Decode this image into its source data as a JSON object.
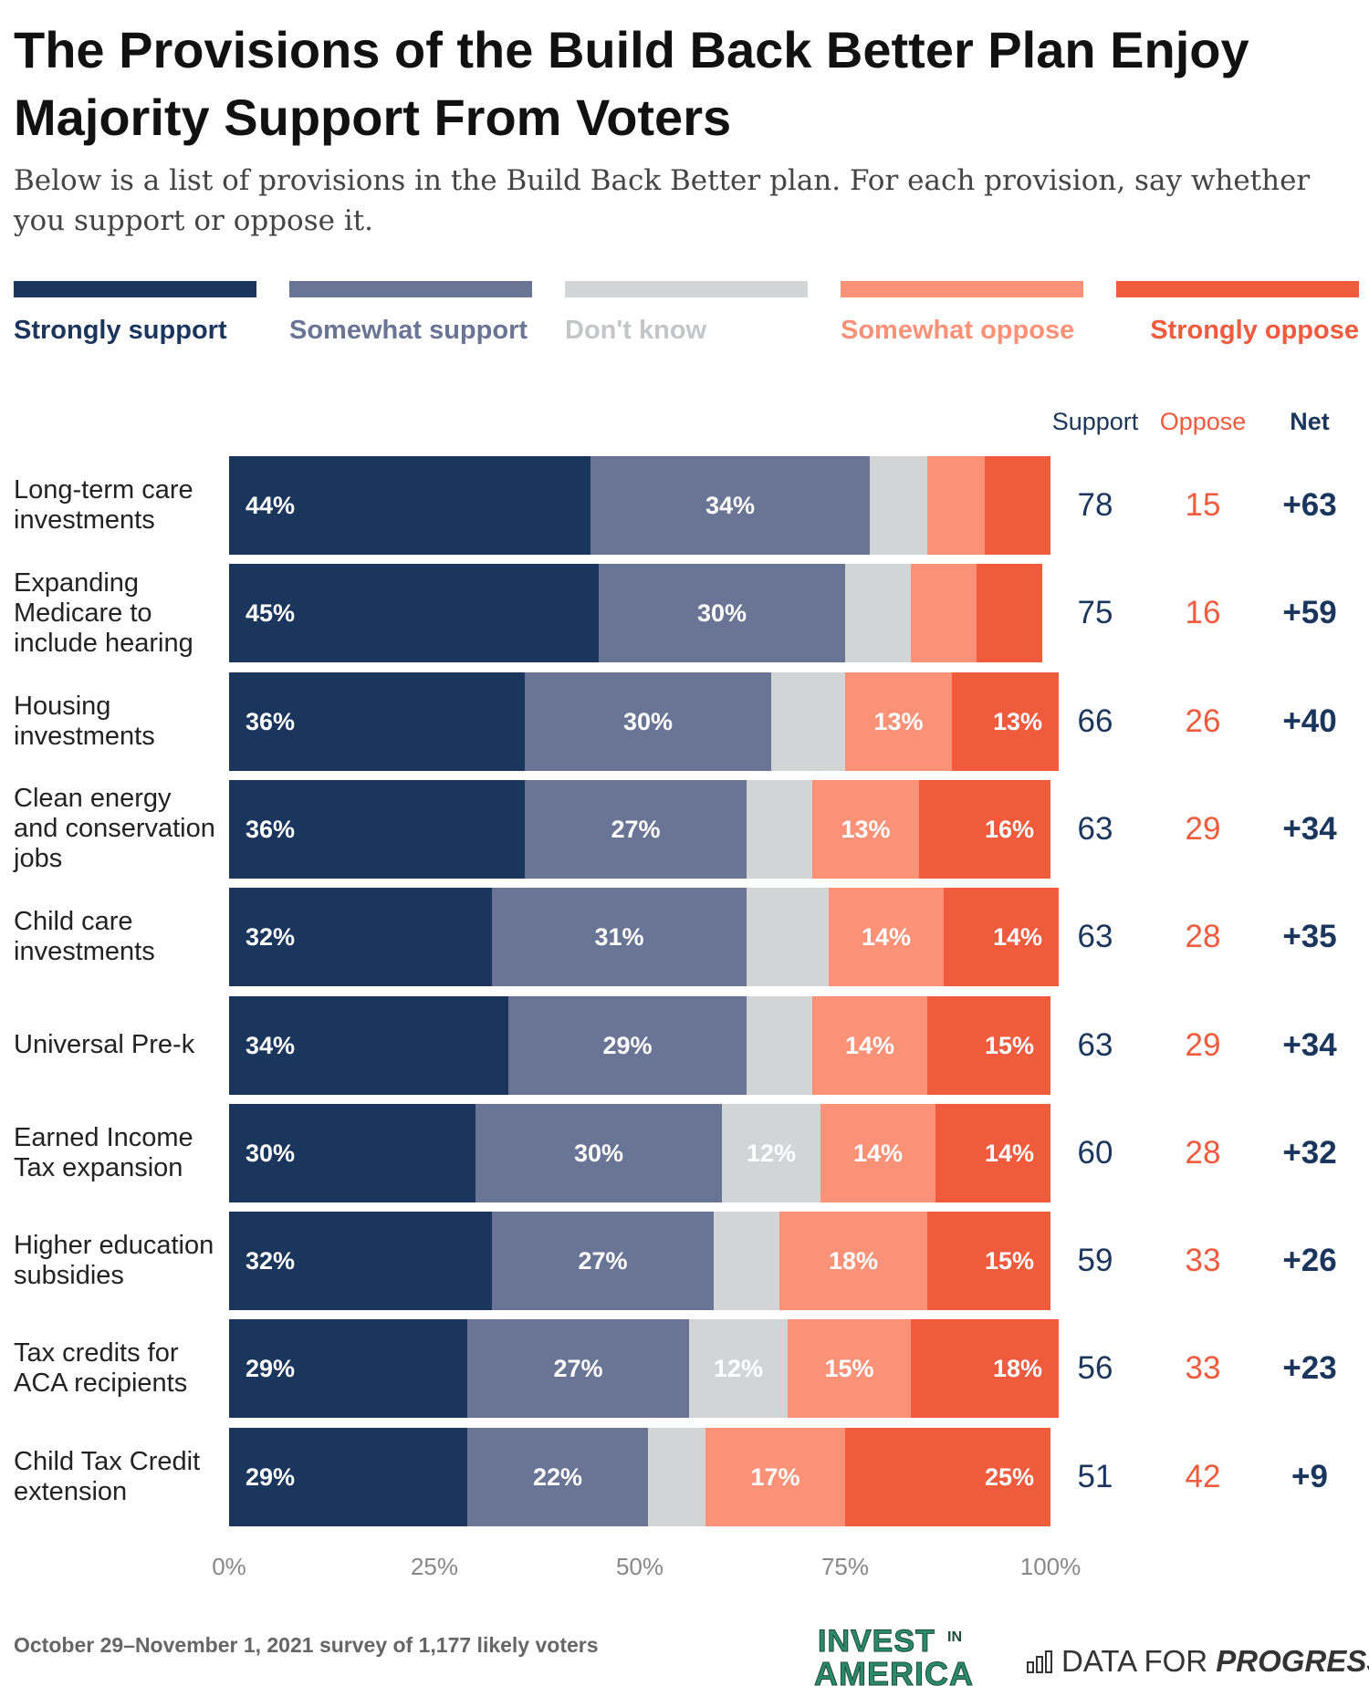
{
  "title": "The Provisions of the Build Back Better Plan Enjoy Majority Support From Voters",
  "subtitle": "Below is a list of provisions in the Build Back Better plan. For each provision, say whether you support or oppose it.",
  "legend": [
    {
      "label": "Strongly support",
      "color": "#1b365d"
    },
    {
      "label": "Somewhat support",
      "color": "#6a7596"
    },
    {
      "label": "Don't know",
      "color": "#d3d4d6"
    },
    {
      "label": "Somewhat oppose",
      "color": "#fb9277"
    },
    {
      "label": "Strongly oppose",
      "color": "#f05a3d"
    }
  ],
  "columns": {
    "support": "Support",
    "oppose": "Oppose",
    "net": "Net"
  },
  "chart_data": {
    "type": "bar",
    "orientation": "horizontal",
    "stacked": true,
    "xlim": [
      0,
      100
    ],
    "x_ticks": [
      "0%",
      "25%",
      "50%",
      "75%",
      "100%"
    ],
    "categories": [
      "Long-term care investments",
      "Expanding Medicare to include hearing",
      "Housing investments",
      "Clean energy and conservation jobs",
      "Child care investments",
      "Universal Pre-k",
      "Earned Income Tax expansion",
      "Higher education subsidies",
      "Tax credits for ACA recipients",
      "Child Tax Credit extension"
    ],
    "series": [
      {
        "name": "Strongly support",
        "values": [
          44,
          45,
          36,
          36,
          32,
          34,
          30,
          32,
          29,
          29
        ],
        "labels": [
          "44%",
          "45%",
          "36%",
          "36%",
          "32%",
          "34%",
          "30%",
          "32%",
          "29%",
          "29%"
        ]
      },
      {
        "name": "Somewhat support",
        "values": [
          34,
          30,
          30,
          27,
          31,
          29,
          30,
          27,
          27,
          22
        ],
        "labels": [
          "34%",
          "30%",
          "30%",
          "27%",
          "31%",
          "29%",
          "30%",
          "27%",
          "27%",
          "22%"
        ]
      },
      {
        "name": "Don't know",
        "values": [
          7,
          8,
          9,
          8,
          10,
          8,
          12,
          8,
          12,
          7
        ],
        "labels": [
          "",
          "",
          "",
          "",
          "",
          "",
          "12%",
          "",
          "12%",
          ""
        ]
      },
      {
        "name": "Somewhat oppose",
        "values": [
          7,
          8,
          13,
          13,
          14,
          14,
          14,
          18,
          15,
          17
        ],
        "labels": [
          "",
          "",
          "13%",
          "13%",
          "14%",
          "14%",
          "14%",
          "18%",
          "15%",
          "17%"
        ]
      },
      {
        "name": "Strongly oppose",
        "values": [
          8,
          8,
          13,
          16,
          14,
          15,
          14,
          15,
          18,
          25
        ],
        "labels": [
          "",
          "",
          "13%",
          "16%",
          "14%",
          "15%",
          "14%",
          "15%",
          "18%",
          "25%"
        ]
      }
    ],
    "support": [
      78,
      75,
      66,
      63,
      63,
      63,
      60,
      59,
      56,
      51
    ],
    "oppose": [
      15,
      16,
      26,
      29,
      28,
      29,
      28,
      33,
      33,
      42
    ],
    "net": [
      "+63",
      "+59",
      "+40",
      "+34",
      "+35",
      "+34",
      "+32",
      "+26",
      "+23",
      "+9"
    ]
  },
  "footer": "October 29–November 1, 2021 survey of 1,177 likely voters",
  "logos": {
    "invest_line1": "INVEST",
    "invest_in": "IN",
    "invest_line2": "AMERICA",
    "dfp_regular": "DATA FOR ",
    "dfp_bold": "PROGRESS"
  }
}
